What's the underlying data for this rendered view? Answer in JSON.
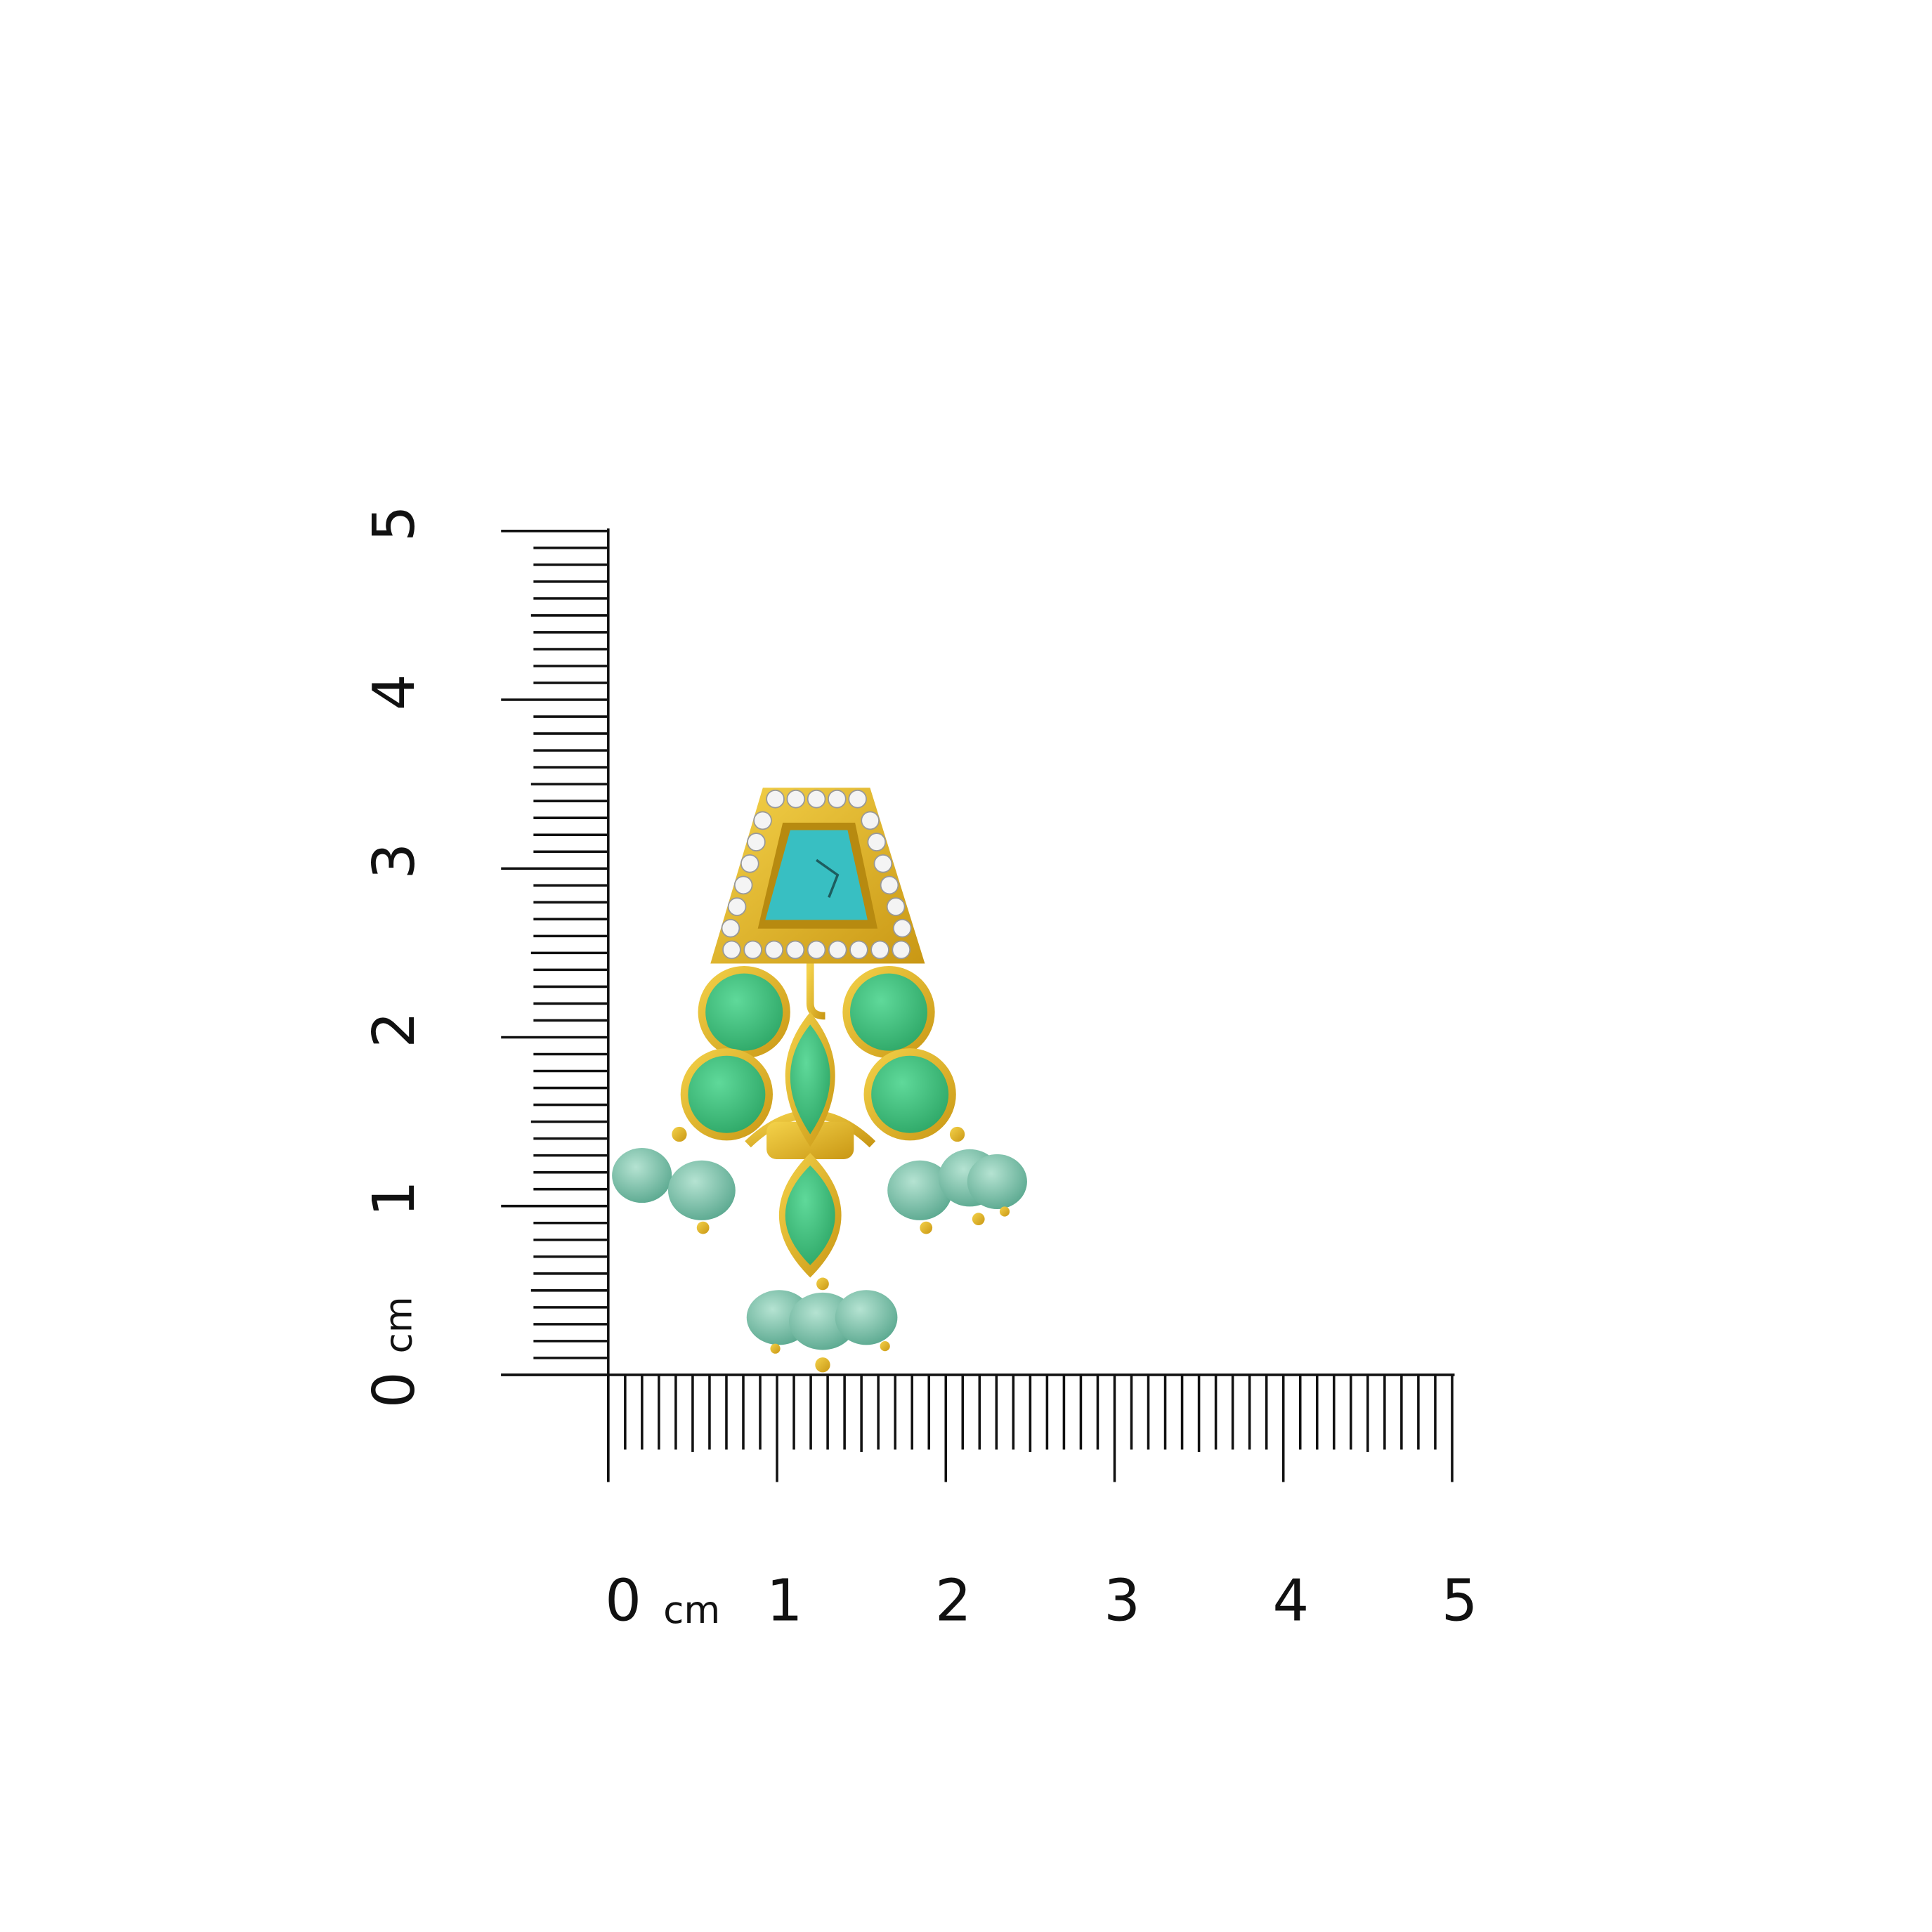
{
  "vertical_ruler": {
    "unit": "cm",
    "labels": [
      "0",
      "1",
      "2",
      "3",
      "4",
      "5"
    ]
  },
  "horizontal_ruler": {
    "unit": "cm",
    "labels": [
      "0",
      "1",
      "2",
      "3",
      "4",
      "5"
    ]
  }
}
